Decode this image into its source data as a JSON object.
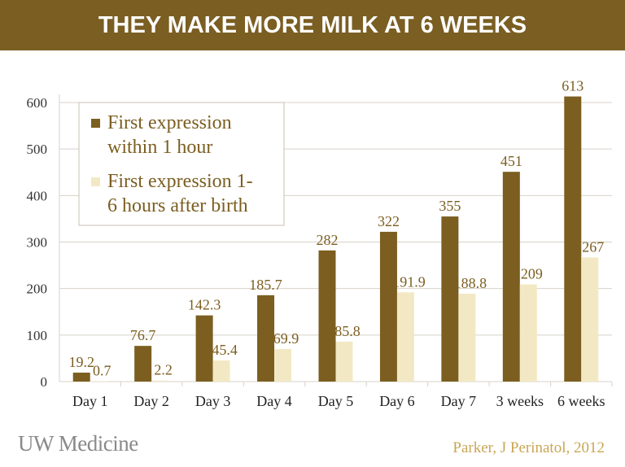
{
  "slide": {
    "title": "THEY MAKE MORE MILK AT 6 WEEKS",
    "logo_text": "UW Medicine",
    "citation": "Parker, J Perinatol, 2012"
  },
  "chart_data": {
    "type": "bar",
    "categories": [
      "Day 1",
      "Day 2",
      "Day 3",
      "Day 4",
      "Day 5",
      "Day 6",
      "Day 7",
      "3 weeks",
      "6 weeks"
    ],
    "series": [
      {
        "name": "First expression within 1 hour",
        "legend_lines": [
          "First expression",
          "within 1 hour"
        ],
        "color": "#7b5e20",
        "values": [
          19.2,
          76.7,
          142.3,
          185.7,
          282,
          322,
          355,
          451,
          613
        ],
        "labels": [
          "19.2",
          "76.7",
          "142.3",
          "185.7",
          "282",
          "322",
          "355",
          "451",
          "613"
        ]
      },
      {
        "name": "First expression 1-6 hours after birth",
        "legend_lines": [
          "First expression 1-",
          "6 hours after birth"
        ],
        "color": "#f2e9c4",
        "values": [
          0.7,
          2.2,
          45.4,
          69.9,
          85.8,
          191.9,
          188.8,
          209,
          267
        ],
        "labels": [
          "0.7",
          "2.2",
          "45.4",
          "69.9",
          "85.8",
          "191.9",
          "188.8",
          "209",
          "267"
        ]
      }
    ],
    "ylim": [
      0,
      600
    ],
    "yticks": [
      0,
      100,
      200,
      300,
      400,
      500,
      600
    ],
    "grid": true,
    "legend": "top-left",
    "label_color": "#7b5e20"
  }
}
